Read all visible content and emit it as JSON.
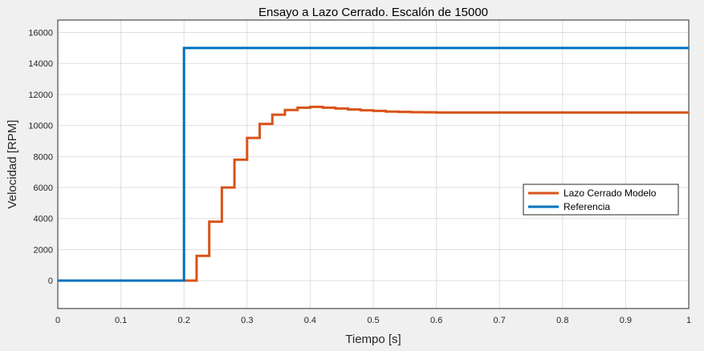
{
  "chart_data": {
    "type": "line",
    "title": "Ensayo a Lazo Cerrado. Escalón de 15000",
    "xlabel": "Tiempo [s]",
    "ylabel": "Velocidad [RPM]",
    "xlim": [
      0,
      1
    ],
    "ylim": [
      -1800,
      16800
    ],
    "xticks": [
      0,
      0.1,
      0.2,
      0.3,
      0.4,
      0.5,
      0.6,
      0.7,
      0.8,
      0.9,
      1
    ],
    "yticks": [
      0,
      2000,
      4000,
      6000,
      8000,
      10000,
      12000,
      14000,
      16000
    ],
    "grid": true,
    "legend_position": "right",
    "series": [
      {
        "name": "Lazo Cerrado Modelo",
        "color": "#d95319",
        "step": true,
        "x": [
          0.2,
          0.22,
          0.24,
          0.26,
          0.28,
          0.3,
          0.32,
          0.34,
          0.36,
          0.38,
          0.4,
          0.42,
          0.44,
          0.46,
          0.48,
          0.5,
          0.52,
          0.54,
          0.56,
          0.58,
          0.6,
          0.7,
          0.8,
          0.9,
          1.0
        ],
        "y": [
          0,
          1600,
          3800,
          6000,
          7800,
          9200,
          10100,
          10700,
          11000,
          11150,
          11200,
          11150,
          11100,
          11030,
          10980,
          10940,
          10900,
          10880,
          10860,
          10850,
          10840,
          10840,
          10840,
          10840,
          10840
        ]
      },
      {
        "name": "Referencia",
        "color": "#0072bd",
        "step": true,
        "x": [
          0,
          0.2,
          1.0
        ],
        "y": [
          0,
          15000,
          15000
        ]
      }
    ]
  }
}
